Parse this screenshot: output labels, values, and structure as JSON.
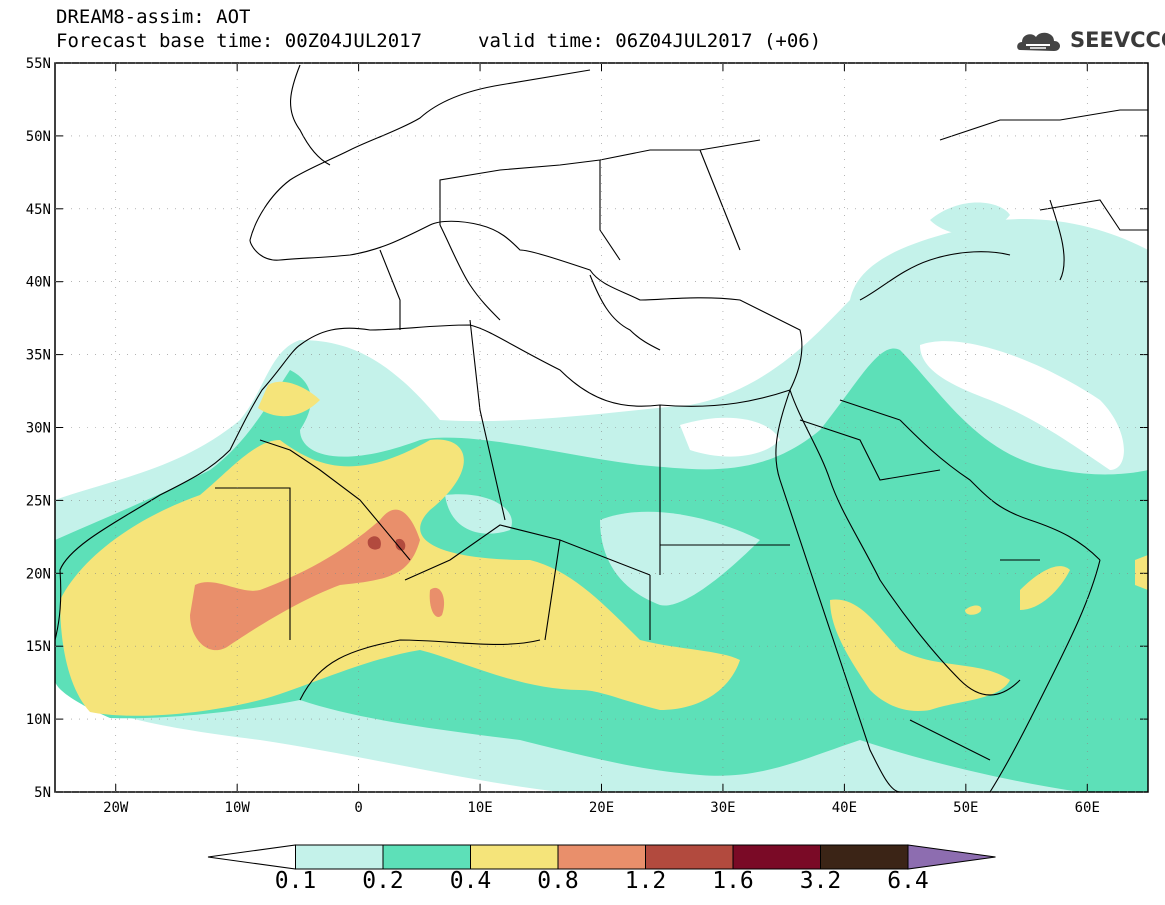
{
  "header": {
    "title_line1": "DREAM8-assim: AOT",
    "title_line2": "Forecast base time: 00Z04JUL2017",
    "valid_time": "valid time: 06Z04JUL2017 (+06)",
    "logo_text": "SEEVCCC"
  },
  "map": {
    "projection": "lat-lon",
    "lon_range": [
      -25,
      65
    ],
    "lat_range": [
      5,
      55
    ],
    "lat_ticks": [
      "5N",
      "10N",
      "15N",
      "20N",
      "25N",
      "30N",
      "35N",
      "40N",
      "45N",
      "50N",
      "55N"
    ],
    "lon_ticks": [
      "20W",
      "10W",
      "0",
      "10E",
      "20E",
      "30E",
      "40E",
      "50E",
      "60E"
    ]
  },
  "colorbar": {
    "labels": [
      "0.1",
      "0.2",
      "0.4",
      "0.8",
      "1.2",
      "1.6",
      "3.2",
      "6.4"
    ],
    "colors": [
      "#c4f2ea",
      "#5de0b8",
      "#f5e47a",
      "#e98f6b",
      "#b24a3e",
      "#7a0a26",
      "#3b2416",
      "#8d6db0"
    ]
  },
  "chart_data": {
    "type": "contour-map",
    "variable": "AOT",
    "levels": [
      0.1,
      0.2,
      0.4,
      0.8,
      1.2,
      1.6,
      3.2,
      6.4
    ],
    "level_colors": [
      "#c4f2ea",
      "#5de0b8",
      "#f5e47a",
      "#e98f6b",
      "#b24a3e",
      "#7a0a26",
      "#3b2416",
      "#8d6db0"
    ],
    "lon_range": [
      -25,
      65
    ],
    "lat_range": [
      5,
      55
    ],
    "max_region": "Mali / Mauritania dust plume (>0.8)"
  }
}
